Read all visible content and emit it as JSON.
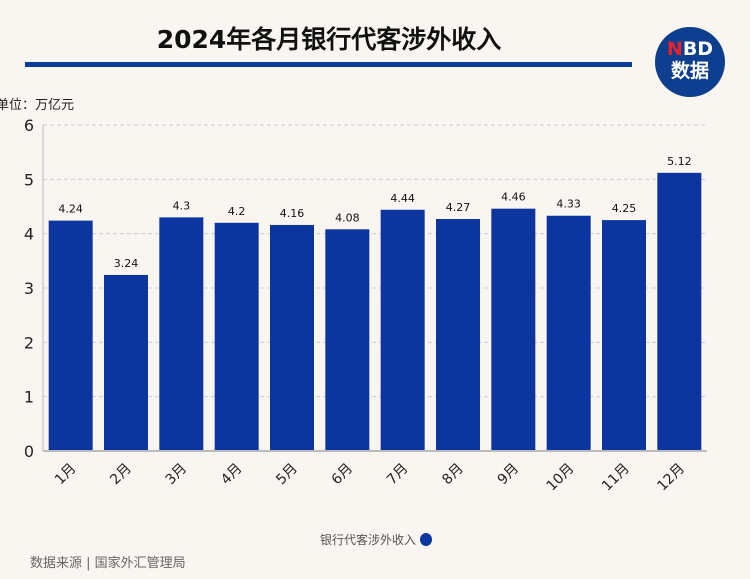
{
  "title": "2024年各月银行代客涉外收入",
  "logo": {
    "n": "N",
    "bd": "BD",
    "line2": "数据"
  },
  "unit_label": "单位：万亿元",
  "source": "数据来源 | 国家外汇管理局",
  "colors": {
    "bar": "#0d35a0",
    "accent": "#0a3d9a",
    "background": "#f9f6f1"
  },
  "chart_data": {
    "type": "bar",
    "title": "2024年各月银行代客涉外收入",
    "xlabel": "",
    "ylabel": "万亿元",
    "categories": [
      "1月",
      "2月",
      "3月",
      "4月",
      "5月",
      "6月",
      "7月",
      "8月",
      "9月",
      "10月",
      "11月",
      "12月"
    ],
    "series": [
      {
        "name": "银行代客涉外收入",
        "values": [
          4.24,
          3.24,
          4.3,
          4.2,
          4.16,
          4.08,
          4.44,
          4.27,
          4.46,
          4.33,
          4.25,
          5.12
        ]
      }
    ],
    "value_labels": [
      "4.24",
      "3.24",
      "4.3",
      "4.2",
      "4.16",
      "4.08",
      "4.44",
      "4.27",
      "4.46",
      "4.33",
      "4.25",
      "5.12"
    ],
    "yticks": [
      0,
      1,
      2,
      3,
      4,
      5,
      6
    ],
    "ylim": [
      0,
      6
    ],
    "grid": true,
    "legend": "bottom-center"
  }
}
